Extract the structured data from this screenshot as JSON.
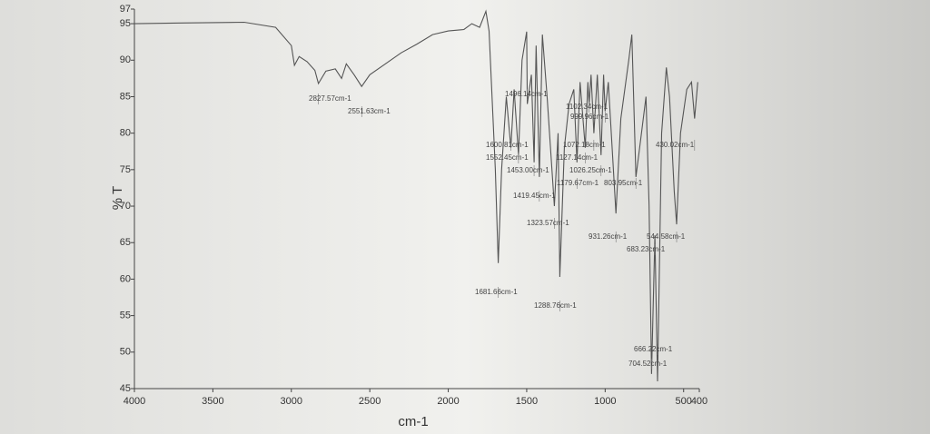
{
  "chart_data": {
    "type": "line",
    "ylabel": "% T",
    "xlabel": "cm-1",
    "xlim": [
      4000,
      400
    ],
    "ylim": [
      45,
      97
    ],
    "xticks": [
      4000,
      3500,
      3000,
      2500,
      2000,
      1500,
      1000,
      500,
      400
    ],
    "yticks": [
      45,
      50,
      55,
      60,
      65,
      70,
      75,
      80,
      85,
      90,
      95,
      97
    ],
    "color": "#555555",
    "x": [
      4000,
      3700,
      3300,
      3100,
      3000,
      2980,
      2950,
      2900,
      2850,
      2827.57,
      2780,
      2720,
      2680,
      2650,
      2600,
      2551.63,
      2500,
      2400,
      2300,
      2200,
      2100,
      2000,
      1900,
      1850,
      1800,
      1760,
      1740,
      1700,
      1681.66,
      1660,
      1630,
      1600.81,
      1580,
      1552.45,
      1530,
      1500,
      1496.14,
      1470,
      1453,
      1440,
      1419.45,
      1400,
      1370,
      1323.57,
      1300,
      1288.76,
      1260,
      1230,
      1200,
      1179.67,
      1160,
      1127.14,
      1110,
      1102.34,
      1090,
      1072.18,
      1050,
      1026.25,
      1010,
      999.96,
      980,
      931.26,
      900,
      850,
      830,
      803.95,
      780,
      740,
      720,
      704.52,
      683.23,
      666.22,
      640,
      610,
      590,
      560,
      544.58,
      520,
      480,
      450,
      430.02,
      410
    ],
    "values": [
      95,
      95.1,
      95.2,
      94.5,
      92,
      89.3,
      90.5,
      89.8,
      88.6,
      86.8,
      88.5,
      88.8,
      87.5,
      89.5,
      88,
      86.4,
      88,
      89.5,
      91,
      92.2,
      93.5,
      94,
      94.2,
      95,
      94.5,
      96.7,
      94,
      75,
      62.2,
      75,
      85,
      78,
      86,
      77,
      90,
      93.9,
      84,
      88,
      76,
      92,
      74,
      93.5,
      85,
      70,
      80,
      60.3,
      78,
      84,
      86,
      76,
      87,
      78,
      87,
      84,
      88,
      80,
      88,
      77,
      88,
      83,
      87,
      69,
      82,
      90,
      93.5,
      74,
      78,
      85,
      70,
      47,
      66,
      46,
      80,
      89,
      85,
      72,
      67.5,
      80,
      86,
      87,
      82,
      87
    ],
    "annotations": [
      {
        "value": 2827.57,
        "label": "2827.57cm-1"
      },
      {
        "value": 2551.63,
        "label": "2551.63cm-1"
      },
      {
        "value": 1496.14,
        "label": "1496.14cm-1"
      },
      {
        "value": 1102.34,
        "label": "1102.34cm-1"
      },
      {
        "value": 999.96,
        "label": "999.96cm-1"
      },
      {
        "value": 1600.81,
        "label": "1600.81cm-1"
      },
      {
        "value": 1552.45,
        "label": "1552.45cm-1"
      },
      {
        "value": 1453,
        "label": "1453.00cm-1"
      },
      {
        "value": 1072.18,
        "label": "1072.18cm-1"
      },
      {
        "value": 1127.14,
        "label": "1127.14cm-1"
      },
      {
        "value": 1026.25,
        "label": "1026.25cm-1"
      },
      {
        "value": 1179.67,
        "label": "1179.67cm-1"
      },
      {
        "value": 803.95,
        "label": "803.95cm-1"
      },
      {
        "value": 430.02,
        "label": "430.02cm-1"
      },
      {
        "value": 1419.45,
        "label": "1419.45cm-1"
      },
      {
        "value": 1323.57,
        "label": "1323.57cm-1"
      },
      {
        "value": 931.26,
        "label": "931.26cm-1"
      },
      {
        "value": 544.58,
        "label": "544.58cm-1"
      },
      {
        "value": 683.23,
        "label": "683.23cm-1"
      },
      {
        "value": 1681.66,
        "label": "1681.66cm-1"
      },
      {
        "value": 1288.76,
        "label": "1288.76cm-1"
      },
      {
        "value": 666.22,
        "label": "666.22cm-1"
      },
      {
        "value": 704.52,
        "label": "704.52cm-1"
      }
    ]
  }
}
